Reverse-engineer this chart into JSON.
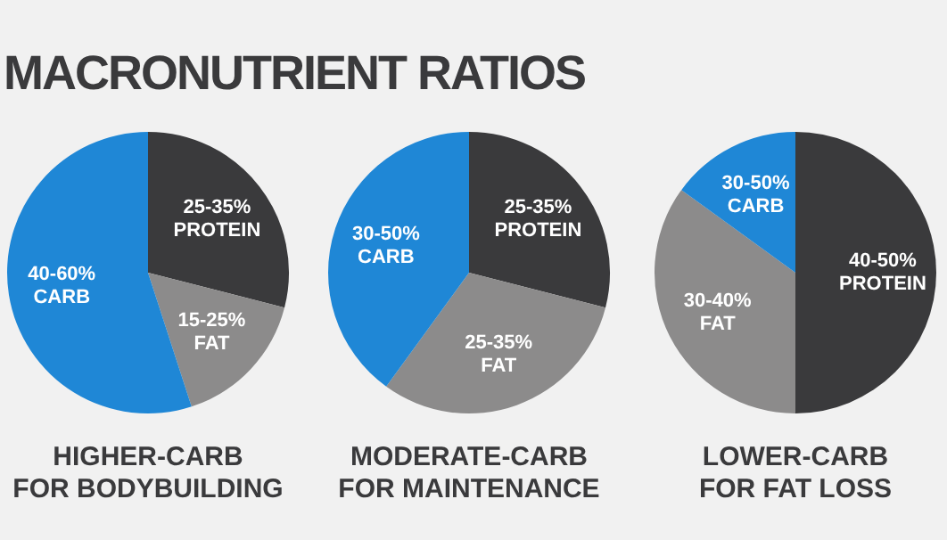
{
  "chart_data": [
    {
      "type": "pie",
      "title": "MACRONUTRIENT RATIOS",
      "xlabel": "HIGHER-CARB\nFOR BODYBUILDING",
      "categories": [
        "25-35%\nPROTEIN",
        "15-25%\nFAT",
        "40-60%\nCARB"
      ],
      "values": [
        29,
        16,
        55
      ],
      "colors": [
        "#3a3a3c",
        "#8c8b8b",
        "#1f87d6"
      ]
    },
    {
      "type": "pie",
      "xlabel": "MODERATE-CARB\nFOR MAINTENANCE",
      "categories": [
        "25-35%\nPROTEIN",
        "25-35%\nFAT",
        "30-50%\nCARB"
      ],
      "values": [
        29,
        31,
        40
      ],
      "colors": [
        "#3a3a3c",
        "#8c8b8b",
        "#1f87d6"
      ]
    },
    {
      "type": "pie",
      "xlabel": "LOWER-CARB\nFOR FAT LOSS",
      "categories": [
        "40-50%\nPROTEIN",
        "30-40%\nFAT",
        "30-50%\nCARB"
      ],
      "values": [
        50,
        35,
        15
      ],
      "colors": [
        "#3a3a3c",
        "#8c8b8b",
        "#1f87d6"
      ]
    }
  ]
}
